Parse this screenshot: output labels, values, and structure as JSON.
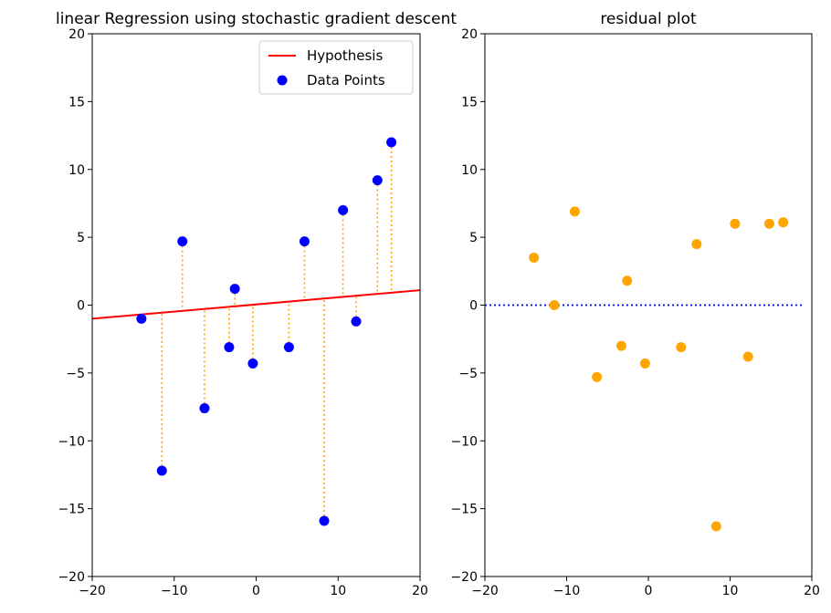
{
  "chart_data": [
    {
      "type": "scatter",
      "title": "linear Regression using stochastic gradient descent",
      "xlabel": "",
      "ylabel": "",
      "xlim": [
        -20,
        20
      ],
      "ylim": [
        -20,
        20
      ],
      "xticks": [
        -20,
        -10,
        0,
        10,
        20
      ],
      "yticks": [
        -20,
        -15,
        -10,
        -5,
        0,
        5,
        10,
        15,
        20
      ],
      "grid": false,
      "legend": {
        "placement": "top-right",
        "entries": [
          {
            "label": "Hypothesis",
            "color": "#ff0000",
            "marker": "line"
          },
          {
            "label": "Data Points",
            "color": "#0000ff",
            "marker": "circle"
          }
        ]
      },
      "line": {
        "name": "Hypothesis",
        "color": "#ff0000",
        "x": [
          -20,
          20
        ],
        "y": [
          -1.0,
          1.1
        ]
      },
      "series": [
        {
          "name": "Data Points",
          "color": "#0000ff",
          "points": [
            {
              "x": -14.0,
              "y": -1.0
            },
            {
              "x": -11.5,
              "y": -12.2
            },
            {
              "x": -9.0,
              "y": 4.7
            },
            {
              "x": -6.3,
              "y": -7.6
            },
            {
              "x": -3.3,
              "y": -3.1
            },
            {
              "x": -2.6,
              "y": 1.2
            },
            {
              "x": -0.4,
              "y": -4.3
            },
            {
              "x": 4.0,
              "y": -3.1
            },
            {
              "x": 5.9,
              "y": 4.7
            },
            {
              "x": 8.3,
              "y": -15.9
            },
            {
              "x": 10.6,
              "y": 7.0
            },
            {
              "x": 12.2,
              "y": -1.2
            },
            {
              "x": 14.8,
              "y": 9.2
            },
            {
              "x": 16.5,
              "y": 12.0
            }
          ]
        }
      ],
      "residual_line_color": "#ffa500"
    },
    {
      "type": "scatter",
      "title": "residual plot",
      "xlabel": "",
      "ylabel": "",
      "xlim": [
        -20,
        20
      ],
      "ylim": [
        -20,
        20
      ],
      "xticks": [
        -20,
        -10,
        0,
        10,
        20
      ],
      "yticks": [
        -20,
        -15,
        -10,
        -5,
        0,
        5,
        10,
        15,
        20
      ],
      "grid": false,
      "reference_line": {
        "y": 0,
        "color": "#0000ff",
        "style": "dotted"
      },
      "series": [
        {
          "color": "#ffa500",
          "points": [
            {
              "x": -14.0,
              "y": 3.5
            },
            {
              "x": -11.5,
              "y": 0.0
            },
            {
              "x": -9.0,
              "y": 6.9
            },
            {
              "x": -6.3,
              "y": -5.3
            },
            {
              "x": -3.3,
              "y": -3.0
            },
            {
              "x": -2.6,
              "y": 1.8
            },
            {
              "x": -0.4,
              "y": -4.3
            },
            {
              "x": 4.0,
              "y": -3.1
            },
            {
              "x": 5.9,
              "y": 4.5
            },
            {
              "x": 8.3,
              "y": -16.3
            },
            {
              "x": 10.6,
              "y": 6.0
            },
            {
              "x": 12.2,
              "y": -3.8
            },
            {
              "x": 14.8,
              "y": 6.0
            },
            {
              "x": 16.5,
              "y": 6.1
            }
          ]
        }
      ]
    }
  ]
}
